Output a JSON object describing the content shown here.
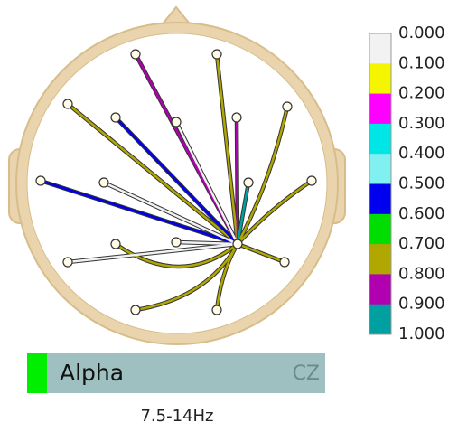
{
  "colorbar": {
    "labels": [
      "0.000",
      "0.100",
      "0.200",
      "0.300",
      "0.400",
      "0.500",
      "0.600",
      "0.700",
      "0.800",
      "0.900",
      "1.000"
    ],
    "colors": [
      "#f2f2f2",
      "#f5f500",
      "#ff00ff",
      "#00e5e5",
      "#80f0f0",
      "#0000ee",
      "#00dd00",
      "#b0a800",
      "#b000b0",
      "#00a0a0"
    ]
  },
  "band": {
    "name": "Alpha",
    "channel": "CZ",
    "range": "7.5-14Hz"
  }
}
